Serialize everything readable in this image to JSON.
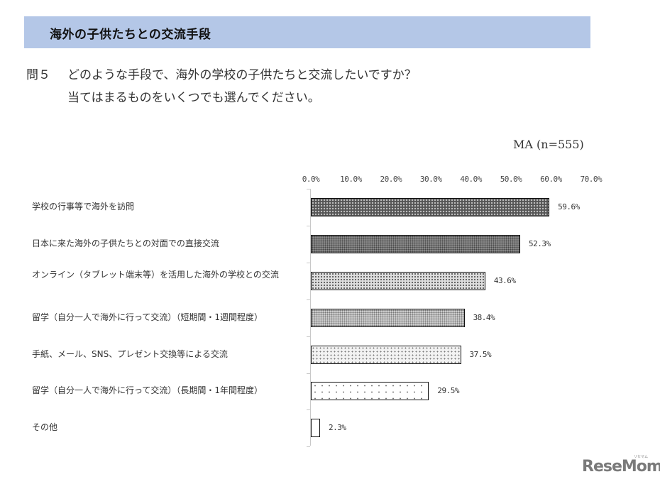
{
  "banner": {
    "title": "海外の子供たちとの交流手段"
  },
  "question": {
    "number": "問５",
    "line1": "どのような手段で、海外の学校の子供たちと交流したいですか？",
    "line2": "当てはまるものをいくつでも選んでください。"
  },
  "sample_note": "MA (n=555)",
  "axis": {
    "ticks": [
      "0.0%",
      "10.0%",
      "20.0%",
      "30.0%",
      "40.0%",
      "50.0%",
      "60.0%",
      "70.0%"
    ]
  },
  "categories": [
    {
      "label": "学校の行事等で海外を訪問",
      "value_label": "59.6%"
    },
    {
      "label": "日本に来た海外の子供たちとの対面での直接交流",
      "value_label": "52.3%"
    },
    {
      "label": "オンライン（タブレット端末等）を活用した海外の学校との交流",
      "value_label": "43.6%"
    },
    {
      "label": "留学（自分一人で海外に行って交流）（短期間・1週間程度）",
      "value_label": "38.4%"
    },
    {
      "label": "手紙、メール、SNS、プレゼント交換等による交流",
      "value_label": "37.5%"
    },
    {
      "label": "留学（自分一人で海外に行って交流）（長期間・1年間程度）",
      "value_label": "29.5%"
    },
    {
      "label": "その他",
      "value_label": "2.3%"
    }
  ],
  "logo": {
    "text": "ReseMom",
    "sub": "リセマム"
  },
  "chart_data": {
    "type": "bar",
    "orientation": "horizontal",
    "title": "海外の子供たちとの交流手段",
    "subtitle": "問５ どのような手段で、海外の学校の子供たちと交流したいですか？ 当てはまるものをいくつでも選んでください。",
    "annotation": "MA (n=555)",
    "categories": [
      "学校の行事等で海外を訪問",
      "日本に来た海外の子供たちとの対面での直接交流",
      "オンライン（タブレット端末等）を活用した海外の学校との交流",
      "留学（自分一人で海外に行って交流）（短期間・1週間程度）",
      "手紙、メール、SNS、プレゼント交換等による交流",
      "留学（自分一人で海外に行って交流）（長期間・1年間程度）",
      "その他"
    ],
    "values": [
      59.6,
      52.3,
      43.6,
      38.4,
      37.5,
      29.5,
      2.3
    ],
    "xlabel": "",
    "ylabel": "",
    "xlim": [
      0,
      70
    ],
    "tick_labels": [
      "0.0%",
      "10.0%",
      "20.0%",
      "30.0%",
      "40.0%",
      "50.0%",
      "60.0%",
      "70.0%"
    ],
    "axis_position": "top",
    "grid": false,
    "legend": null,
    "data_labels": true
  }
}
